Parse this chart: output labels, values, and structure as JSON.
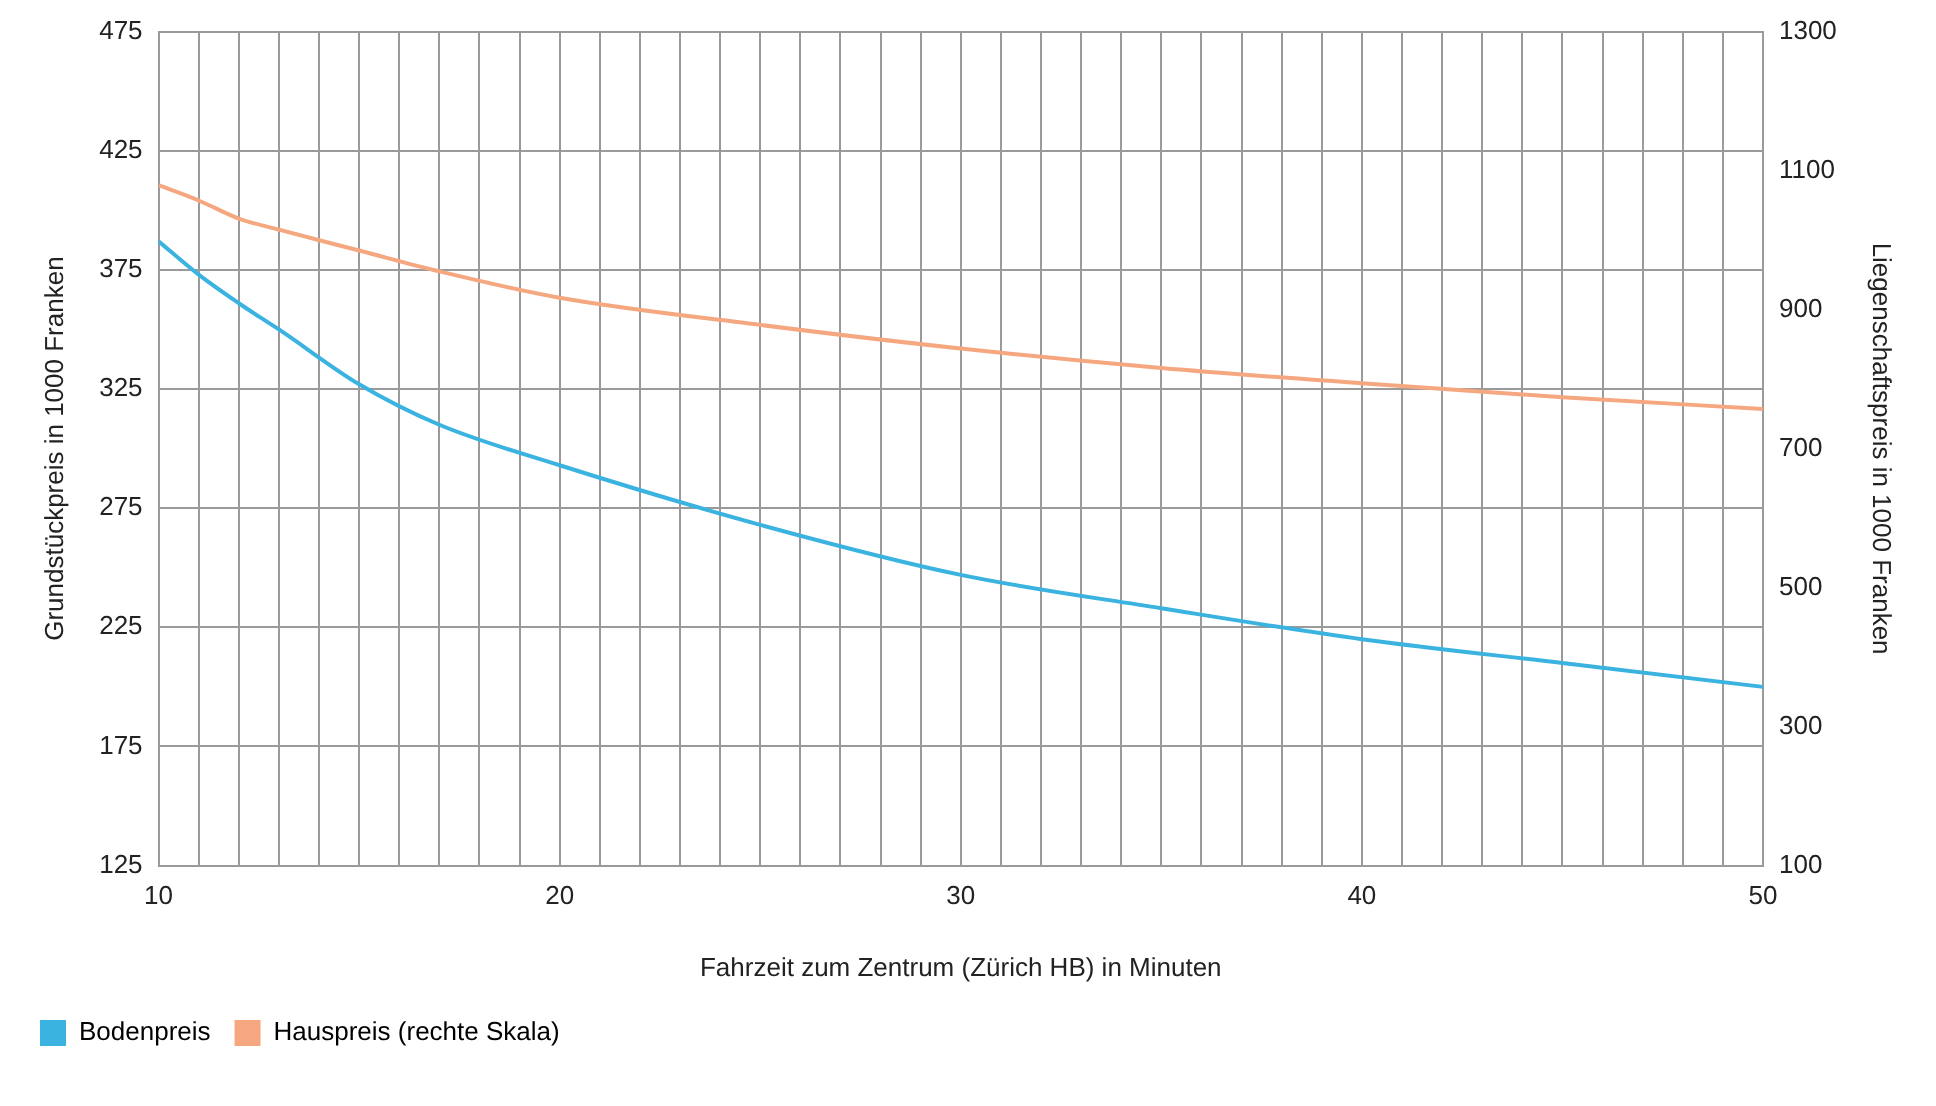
{
  "chart_data": {
    "type": "line",
    "xlabel": "Fahrzeit zum Zentrum (Zürich HB) in Minuten",
    "ylabel": "Grundstückpreis in 1000 Franken",
    "y2label": "Liegenschaftspreis in 1000 Franken",
    "x": [
      10,
      11,
      12,
      13,
      15,
      17,
      20,
      25,
      30,
      35,
      40,
      45,
      50
    ],
    "series": [
      {
        "name": "Bodenpreis",
        "color": "#3bb3e0",
        "values": [
          387,
          373,
          361,
          350,
          327,
          310,
          293,
          268,
          247,
          233,
          220,
          210,
          200
        ]
      },
      {
        "name": "Hauspreis (rechte Skala)",
        "color": "#f5a77f",
        "axis": "y2",
        "values": [
          1079,
          1057,
          1031,
          1015,
          985,
          955,
          917,
          878,
          844,
          816,
          794,
          774,
          757
        ]
      }
    ],
    "xlim": [
      10,
      50
    ],
    "xticks": [
      10,
      {
        "value": 11,
        "label": null
      },
      {
        "value": 12,
        "label": null
      },
      {
        "value": 13,
        "label": null
      },
      {
        "value": 14,
        "label": null
      },
      {
        "value": 15,
        "label": null
      },
      {
        "value": 16,
        "label": null
      },
      {
        "value": 17,
        "label": null
      },
      {
        "value": 18,
        "label": null
      },
      {
        "value": 19,
        "label": null
      },
      20,
      {
        "value": 21,
        "label": null
      },
      {
        "value": 22,
        "label": null
      },
      {
        "value": 23,
        "label": null
      },
      {
        "value": 24,
        "label": null
      },
      {
        "value": 25,
        "label": null
      },
      {
        "value": 26,
        "label": null
      },
      {
        "value": 27,
        "label": null
      },
      {
        "value": 28,
        "label": null
      },
      {
        "value": 29,
        "label": null
      },
      30,
      {
        "value": 31,
        "label": null
      },
      {
        "value": 32,
        "label": null
      },
      {
        "value": 33,
        "label": null
      },
      {
        "value": 34,
        "label": null
      },
      {
        "value": 35,
        "label": null
      },
      {
        "value": 36,
        "label": null
      },
      {
        "value": 37,
        "label": null
      },
      {
        "value": 38,
        "label": null
      },
      {
        "value": 39,
        "label": null
      },
      40,
      {
        "value": 41,
        "label": null
      },
      {
        "value": 42,
        "label": null
      },
      {
        "value": 43,
        "label": null
      },
      {
        "value": 44,
        "label": null
      },
      {
        "value": 45,
        "label": null
      },
      {
        "value": 46,
        "label": null
      },
      {
        "value": 47,
        "label": null
      },
      {
        "value": 48,
        "label": null
      },
      {
        "value": 49,
        "label": null
      },
      50
    ],
    "ylim": [
      125,
      475
    ],
    "yticks": [
      125,
      175,
      225,
      275,
      325,
      375,
      425,
      475
    ],
    "y2lim": [
      100,
      1300
    ],
    "y2ticks": [
      100,
      300,
      500,
      700,
      900,
      1100,
      1300
    ],
    "grid": true,
    "legend": "bottom left",
    "marker": "none",
    "line_style": "solid"
  }
}
